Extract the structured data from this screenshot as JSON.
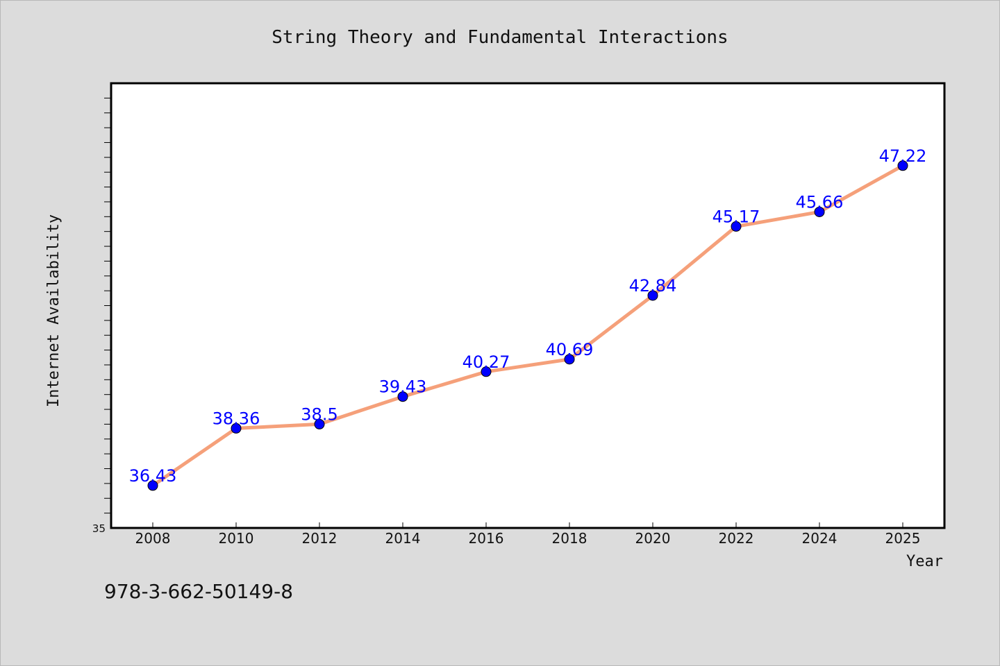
{
  "isbn": "978-3-662-50149-8",
  "colors": {
    "line": "#f5a07a",
    "marker": "#0000ff",
    "labels": "#0000ff",
    "background": "#dcdcdc",
    "plot_bg": "#ffffff"
  },
  "chart_data": {
    "type": "line",
    "title": "String Theory and Fundamental Interactions",
    "xlabel": "Year",
    "ylabel": "Internet Availability",
    "x": [
      "2008",
      "2010",
      "2012",
      "2014",
      "2016",
      "2018",
      "2020",
      "2022",
      "2024",
      "2025"
    ],
    "series": [
      {
        "values": [
          36.43,
          38.36,
          38.5,
          39.43,
          40.27,
          40.69,
          42.84,
          45.17,
          45.66,
          47.22
        ]
      }
    ],
    "data_labels": [
      "36.43",
      "38.36",
      "38.5",
      "39.43",
      "40.27",
      "40.69",
      "42.84",
      "45.17",
      "45.66",
      "47.22"
    ],
    "ylim": [
      35,
      50
    ],
    "yticks": [
      35
    ],
    "ytick_labels": [
      "35"
    ],
    "grid": false,
    "legend": "none"
  }
}
